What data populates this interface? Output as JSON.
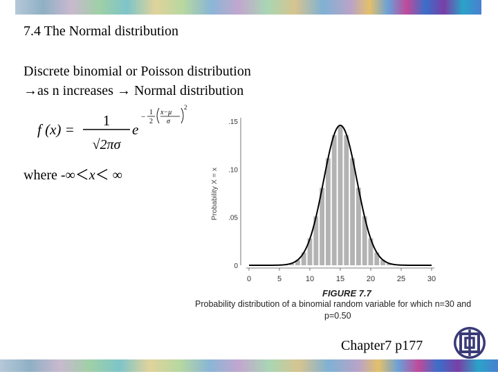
{
  "slide": {
    "title": "7.4  The Normal distribution",
    "line_1": "Discrete binomial or Poisson distribution",
    "line_2_arrow": "→",
    "line_2_a": "as n increases ",
    "line_2_b": " Normal distribution",
    "where_prefix": "where -∞＜",
    "where_var": "x",
    "where_suffix": "＜ ∞",
    "footer": "Chapter7 p177"
  },
  "formula": {
    "lhs": "f (x) =",
    "numerator": "1",
    "denominator": "√2πσ",
    "base": "e",
    "exp_sign": "−",
    "exp_frac_num": "1",
    "exp_frac_den": "2",
    "exp_inner_num": "x−μ",
    "exp_inner_den": "σ",
    "exp_power": "2"
  },
  "figure": {
    "label": "FIGURE 7.7",
    "caption_1": "Probability distribution of a binomial random variable for which n=30 and",
    "caption_2": "p=0.50"
  },
  "chart_data": {
    "type": "bar",
    "ylabel": "Probability X = x",
    "x_ticks": [
      "0",
      "5",
      "10",
      "15",
      "20",
      "25",
      "30"
    ],
    "y_ticks": [
      ".15",
      ".10",
      ".05",
      "0"
    ],
    "xlim": [
      0,
      30
    ],
    "ylim": [
      0,
      0.15
    ],
    "categories": [
      6,
      7,
      8,
      9,
      10,
      11,
      12,
      13,
      14,
      15,
      16,
      17,
      18,
      19,
      20,
      21,
      22,
      23,
      24
    ],
    "values": [
      0.0006,
      0.0019,
      0.0055,
      0.0133,
      0.028,
      0.0509,
      0.0806,
      0.1115,
      0.1354,
      0.1445,
      0.1354,
      0.1115,
      0.0806,
      0.0509,
      0.028,
      0.0133,
      0.0055,
      0.0019,
      0.0006
    ],
    "curve": {
      "mean": 15,
      "sd": 2.7386
    },
    "bar_color": "#b3b3b3",
    "curve_color": "#000000"
  }
}
